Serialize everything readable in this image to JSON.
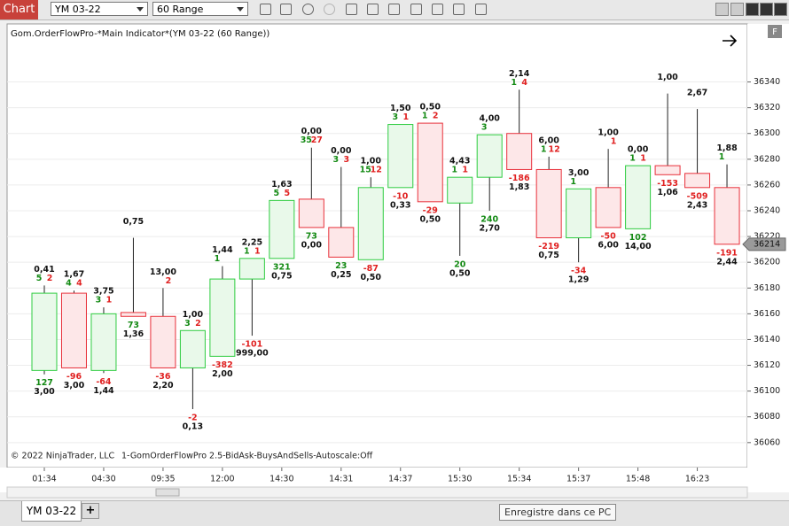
{
  "ui": {
    "window_tab": "Chart",
    "instrument": "YM 03-22",
    "period": "60 Range",
    "indicator_title": "Gom.OrderFlowPro-*Main Indicator*(YM 03-22 (60 Range))",
    "copyright": "© 2022 NinjaTrader, LLC",
    "indicator_note": "1-GomOrderFlowPro 2.5-BidAsk-BuysAndSells-Autoscale:Off",
    "panel_button": "F",
    "sheet_tab": "YM 03-22",
    "add_tab": "+",
    "tooltip": "Enregistre dans ce PC"
  },
  "chart_data": {
    "type": "candlestick",
    "categories": [
      "01:34",
      null,
      "04:30",
      null,
      "09:35",
      null,
      "12:00",
      null,
      "14:30",
      null,
      "14:31",
      null,
      "14:37",
      null,
      "15:30",
      null,
      "15:34",
      null,
      "15:37",
      null,
      "15:48",
      null,
      "16:23",
      null
    ],
    "open": [
      36116,
      36176,
      36116,
      36161,
      36158,
      36118,
      36127,
      36187,
      36203,
      36249,
      36227,
      36202,
      36258,
      36308,
      36246,
      36266,
      36300,
      36272,
      36219,
      36258,
      36226,
      36275,
      36269,
      36258
    ],
    "high": [
      36182,
      36178,
      36165,
      36219,
      36180,
      36147,
      36197,
      36203,
      36248,
      36289,
      36274,
      36266,
      36307,
      36308,
      36266,
      36299,
      36334,
      36282,
      36257,
      36288,
      36275,
      36331,
      36319,
      36276
    ],
    "low": [
      36113,
      36118,
      36114,
      36158,
      36118,
      36086,
      36127,
      36143,
      36203,
      36227,
      36204,
      36202,
      36258,
      36247,
      36205,
      36240,
      36272,
      36219,
      36200,
      36227,
      36226,
      36268,
      36258,
      36214
    ],
    "close": [
      36176,
      36118,
      36160,
      36158,
      36118,
      36147,
      36187,
      36203,
      36248,
      36227,
      36204,
      36258,
      36307,
      36247,
      36266,
      36299,
      36272,
      36219,
      36257,
      36227,
      36275,
      36268,
      36258,
      36214
    ],
    "up_color": "#2ecc40",
    "down_color": "#e8303a",
    "up_fill": "#e9f9ea",
    "down_fill": "#fde7e8",
    "buy_color": "#138a13",
    "sell_color": "#e02020",
    "top_labels": [
      {
        "ratio": "0,41",
        "buy": "5",
        "sell": "2"
      },
      {
        "ratio": "1,67",
        "buy": "4",
        "sell": "4"
      },
      {
        "ratio": "3,75",
        "buy": "3",
        "sell": "1"
      },
      {
        "ratio": "0,75"
      },
      {
        "ratio": "13,00",
        "sell": "2"
      },
      {
        "ratio": "1,00",
        "buy": "3",
        "sell": "2"
      },
      {
        "ratio": "1,44",
        "buy": "1"
      },
      {
        "ratio": "2,25",
        "buy": "1",
        "sell": "1"
      },
      {
        "ratio": "1,63",
        "buy": "5",
        "sell": "5"
      },
      {
        "ratio": "0,00",
        "buy": "35",
        "sell": "27"
      },
      {
        "ratio": "0,00",
        "buy": "3",
        "sell": "3"
      },
      {
        "ratio": "1,00",
        "buy": "15",
        "sell": "12"
      },
      {
        "ratio": "1,50",
        "buy": "3",
        "sell": "1"
      },
      {
        "ratio": "0,50",
        "buy": "1",
        "sell": "2"
      },
      {
        "ratio": "4,43",
        "buy": "1",
        "sell": "1"
      },
      {
        "ratio": "4,00",
        "buy": "3"
      },
      {
        "ratio": "2,14",
        "buy": "1",
        "sell": "4"
      },
      {
        "ratio": "6,00",
        "buy": "1",
        "sell": "12"
      },
      {
        "ratio": "3,00",
        "buy": "1"
      },
      {
        "ratio": "1,00",
        "sell": "1"
      },
      {
        "ratio": "0,00",
        "buy": "1",
        "sell": "1"
      },
      {
        "ratio": "1,00"
      },
      {
        "ratio": "2,67"
      },
      {
        "ratio": "1,88",
        "buy": "1"
      }
    ],
    "bottom_labels": [
      {
        "delta": "127",
        "ratio": "3,00"
      },
      {
        "delta": "-96",
        "ratio": "3,00"
      },
      {
        "delta": "-64",
        "ratio": "1,44"
      },
      {
        "delta": "73",
        "ratio": "1,36"
      },
      {
        "delta": "-36",
        "ratio": "2,20"
      },
      {
        "delta": "-2",
        "ratio": "0,13"
      },
      {
        "delta": "-382",
        "ratio": "2,00"
      },
      {
        "delta": "-101",
        "ratio": "999,00"
      },
      {
        "delta": "321",
        "ratio": "0,75"
      },
      {
        "delta": "73",
        "ratio": "0,00"
      },
      {
        "delta": "23",
        "ratio": "0,25"
      },
      {
        "delta": "-87",
        "ratio": "0,50"
      },
      {
        "delta": "-10",
        "ratio": "0,33"
      },
      {
        "delta": "-29",
        "ratio": "0,50"
      },
      {
        "delta": "20",
        "ratio": "0,50"
      },
      {
        "delta": "240",
        "ratio": "2,70"
      },
      {
        "delta": "-186",
        "ratio": "1,83"
      },
      {
        "delta": "-219",
        "ratio": "0,75"
      },
      {
        "delta": "-34",
        "ratio": "1,29"
      },
      {
        "delta": "-50",
        "ratio": "6,00"
      },
      {
        "delta": "102",
        "ratio": "14,00"
      },
      {
        "delta": "-153",
        "ratio": "1,06"
      },
      {
        "delta": "-509",
        "ratio": "2,43"
      },
      {
        "delta": "-191",
        "ratio": "2,44"
      }
    ],
    "last_price": 36214,
    "ylim": [
      36042,
      36383
    ],
    "yticks": [
      36060,
      36080,
      36100,
      36120,
      36140,
      36160,
      36180,
      36200,
      36220,
      36240,
      36260,
      36280,
      36300,
      36320,
      36340
    ],
    "grid": true
  }
}
